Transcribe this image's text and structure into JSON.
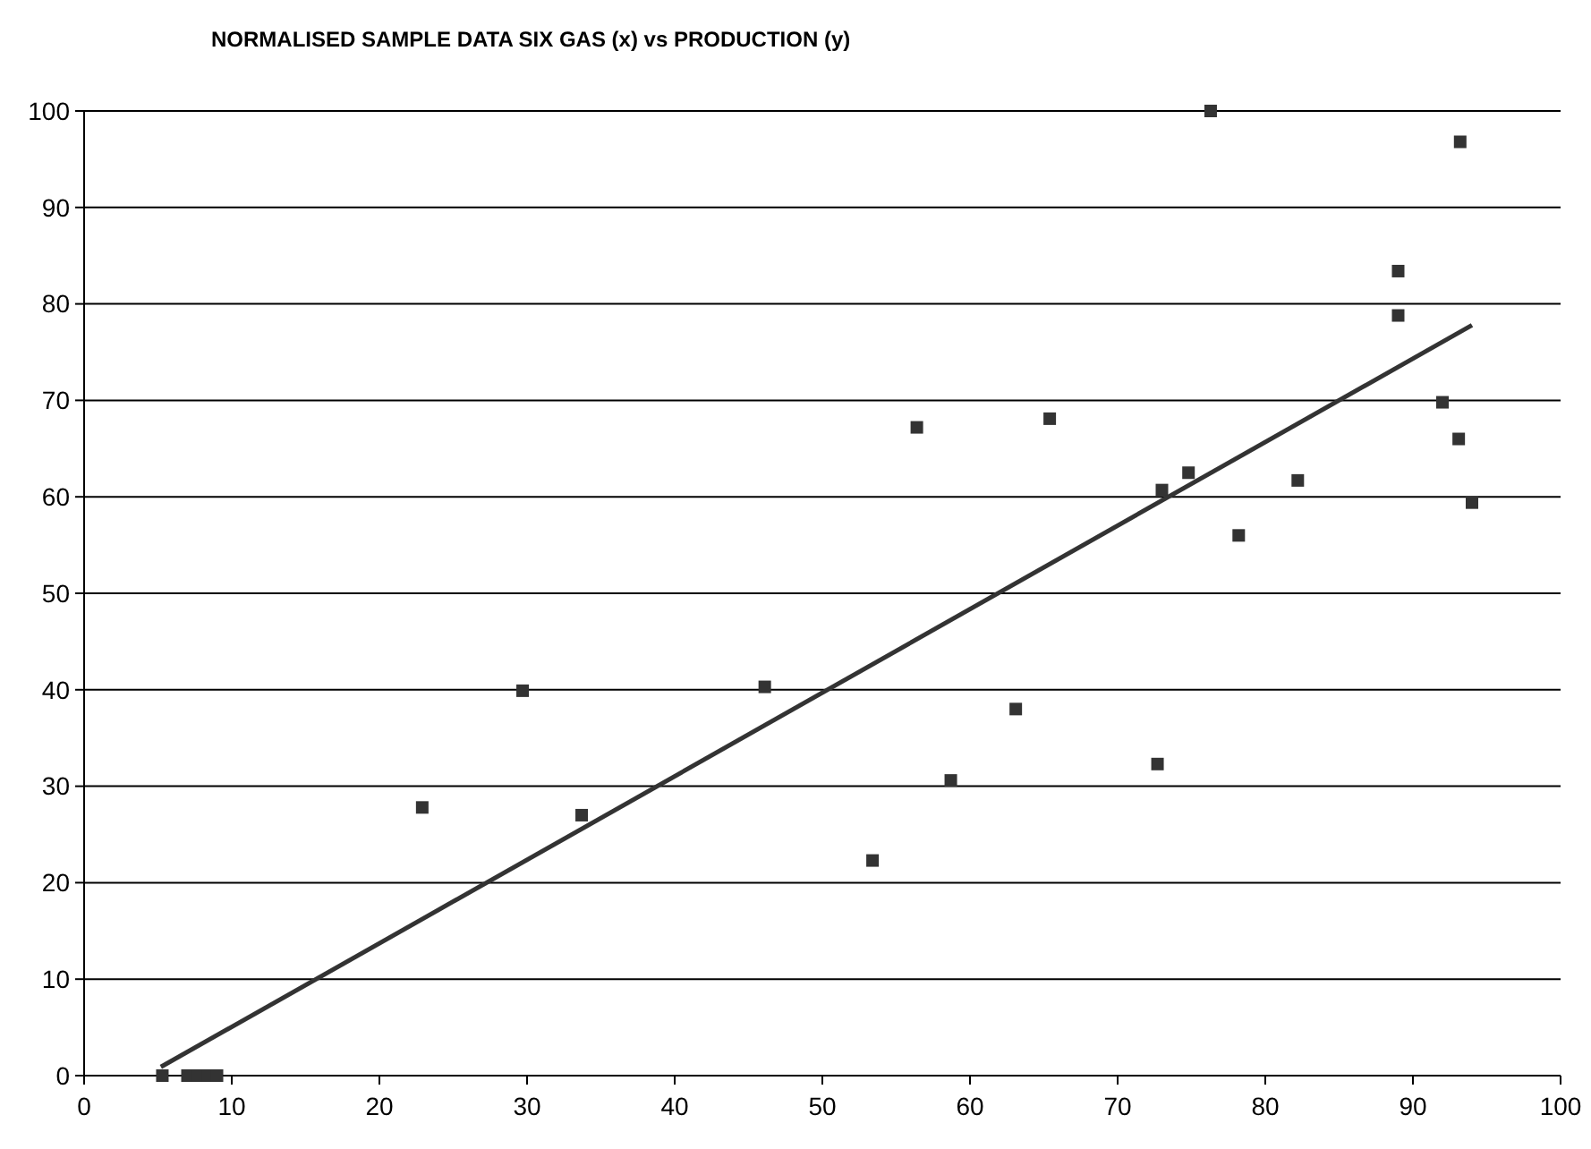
{
  "chart_data": {
    "type": "scatter",
    "title": "NORMALISED SAMPLE DATA SIX GAS (x) vs PRODUCTION (y)",
    "xlim": [
      0,
      100
    ],
    "xticks": [
      0,
      10,
      20,
      30,
      40,
      50,
      60,
      70,
      80,
      90,
      100
    ],
    "ylim": [
      0,
      100
    ],
    "yticks": [
      0,
      10,
      20,
      30,
      40,
      50,
      60,
      70,
      80,
      90,
      100
    ],
    "grid": "y",
    "marker": "square",
    "series": [
      {
        "color": "#333333",
        "x": [
          5.3,
          7.0,
          7.7,
          8.4,
          9.0,
          22.9,
          29.7,
          33.7,
          46.1,
          53.4,
          56.4,
          58.7,
          63.1,
          65.4,
          72.7,
          73.0,
          74.8,
          76.3,
          78.2,
          82.2,
          89.0,
          89.0,
          92.0,
          93.1,
          93.2,
          94.0
        ],
        "values": [
          0,
          0,
          0,
          0,
          0,
          27.8,
          39.9,
          27.0,
          40.3,
          22.3,
          67.2,
          30.6,
          38.0,
          68.1,
          32.3,
          60.7,
          62.5,
          100,
          56.0,
          61.7,
          83.4,
          78.8,
          69.8,
          66.0,
          96.8,
          59.4
        ]
      },
      {
        "type": "line",
        "color": "#333333",
        "marker": "none",
        "x": [
          5.2,
          94.0
        ],
        "values": [
          0.9,
          77.8
        ]
      }
    ]
  }
}
